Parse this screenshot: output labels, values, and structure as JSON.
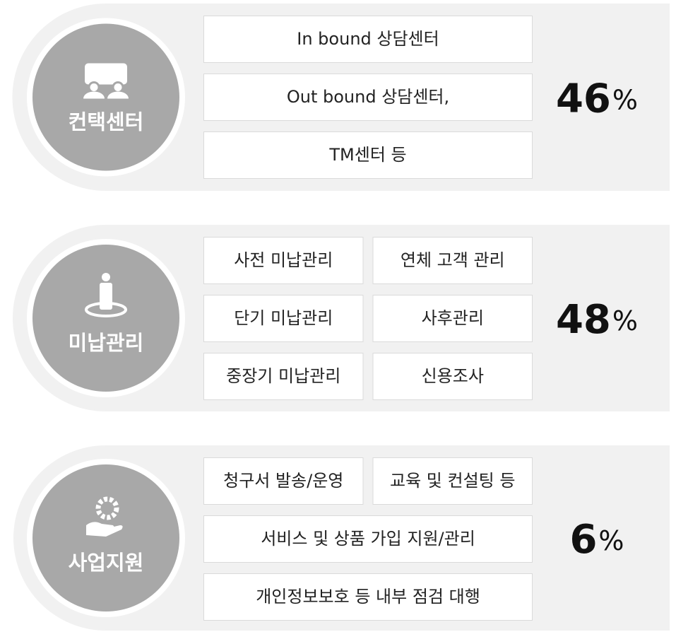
{
  "sections": [
    {
      "title": "컨택센터",
      "rows": [
        [
          "In bound 상담센터"
        ],
        [
          "Out bound 상담센터,"
        ],
        [
          "TM센터 등"
        ]
      ],
      "percent": "46",
      "unit": "%"
    },
    {
      "title": "미납관리",
      "rows": [
        [
          "사전 미납관리",
          "연체 고객 관리"
        ],
        [
          "단기 미납관리",
          "사후관리"
        ],
        [
          "중장기 미납관리",
          "신용조사"
        ]
      ],
      "percent": "48",
      "unit": "%"
    },
    {
      "title": "사업지원",
      "rows": [
        [
          "청구서 발송/운영",
          "교육 및 컨설팅 등"
        ],
        [
          "서비스 및 상품 가입 지원/관리"
        ],
        [
          "개인정보보호 등 내부 점검 대행"
        ]
      ],
      "percent": "6",
      "unit": "%"
    }
  ]
}
